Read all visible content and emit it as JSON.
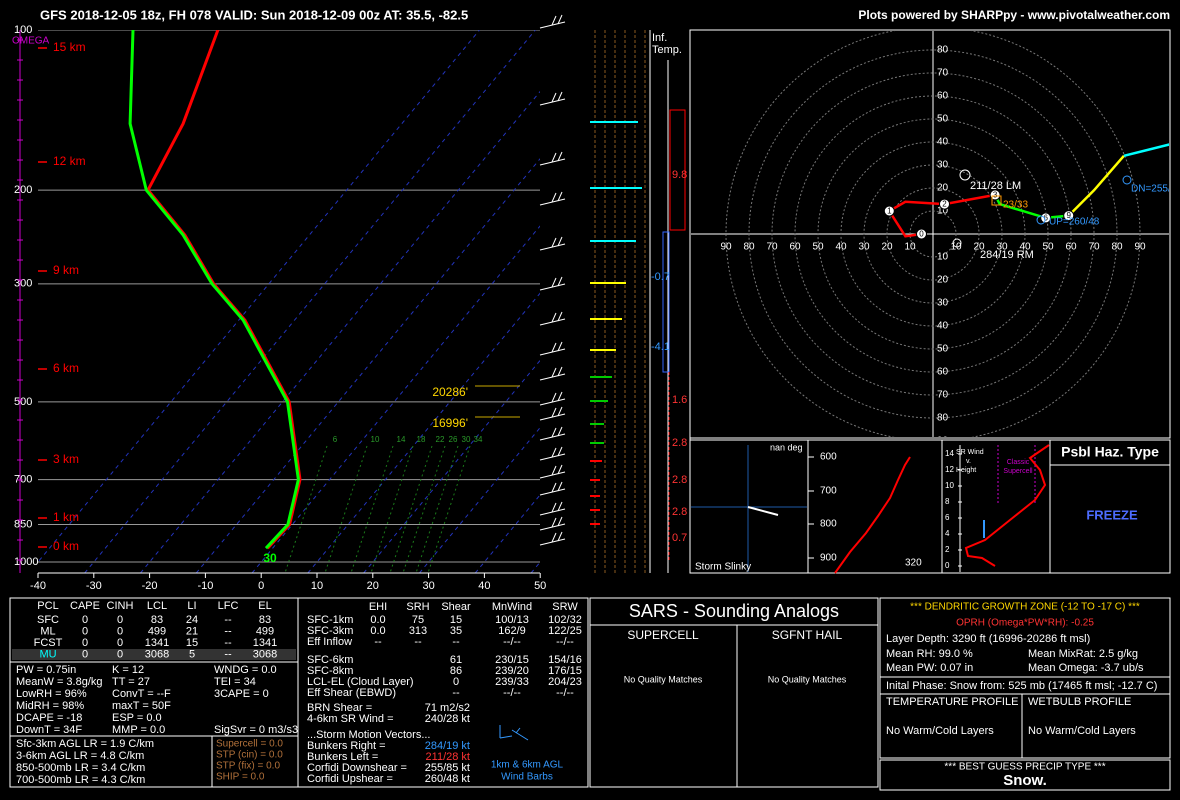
{
  "header": {
    "left": "GFS 2018-12-05 18z, FH 078    VALID: Sun 2018-12-09 00z    AT: 35.5, -82.5",
    "right": "Plots powered by SHARPpy - www.pivotalweather.com"
  },
  "skewt": {
    "omega_label": "OMEGA",
    "pressure_ticks": [
      100,
      200,
      300,
      500,
      700,
      850,
      1000
    ],
    "temp_ticks": [
      -40,
      -30,
      -20,
      -10,
      0,
      10,
      20,
      30,
      40,
      50
    ],
    "height_labels": [
      "15 km",
      "12 km",
      "9 km",
      "6 km",
      "3 km",
      "1 km",
      "0 km"
    ],
    "pressure": [
      942,
      850,
      700,
      500,
      351,
      300,
      243,
      200,
      150,
      100
    ],
    "temperature": [
      -0.9,
      -0.5,
      -5.3,
      -18.8,
      -38.9,
      -49.9,
      -62.3,
      -75.6,
      -79.2,
      -86.9
    ],
    "dewpoint": [
      -1.2,
      -0.8,
      -5.6,
      -19.1,
      -39.2,
      -50.2,
      -62.6,
      -75.9,
      -88.7,
      -102.1
    ],
    "dgz_labels": [
      "20286'",
      "16996'"
    ],
    "mixing_ratio_labels": [
      6,
      10,
      14,
      18,
      22,
      26,
      30,
      34
    ],
    "surface_label": 30
  },
  "inferred_temp": {
    "title": [
      "Inf.",
      "Temp."
    ],
    "values": [
      9.8,
      -0.7,
      -4.1,
      1.6,
      2.8,
      2.8,
      2.8,
      0.7
    ]
  },
  "hodograph": {
    "ring_labels": [
      10,
      20,
      30,
      40,
      50,
      60,
      70,
      80,
      90
    ],
    "traces": [
      {
        "color": "#ff0000",
        "u": [
          -5,
          -12,
          -19,
          -12,
          5,
          27
        ],
        "v": [
          0,
          -1,
          10,
          14,
          13,
          17
        ]
      },
      {
        "color": "#00ff00",
        "u": [
          27,
          29,
          49,
          59
        ],
        "v": [
          17,
          13,
          7,
          8
        ]
      },
      {
        "color": "#ffff00",
        "u": [
          59,
          70,
          83
        ],
        "v": [
          8,
          19,
          34
        ]
      },
      {
        "color": "#00ffff",
        "u": [
          83,
          103
        ],
        "v": [
          34,
          39
        ]
      }
    ],
    "km_markers": [
      {
        "km": 0,
        "u": -5,
        "v": 0
      },
      {
        "km": 1,
        "u": -19,
        "v": 10
      },
      {
        "km": 2,
        "u": 5,
        "v": 13
      },
      {
        "km": 3,
        "u": 27,
        "v": 17
      },
      {
        "km": 6,
        "u": 49,
        "v": 7
      },
      {
        "km": 9,
        "u": 59,
        "v": 8
      }
    ],
    "annotations": {
      "lm": "211/28 LM",
      "mid": "23/33",
      "rm": "284/19 RM",
      "dn": "DN=255/",
      "up": "UP=260/48"
    }
  },
  "slinky": {
    "title": "Storm Slinky",
    "angle": "nan deg"
  },
  "thetae": {
    "pressure_ticks": [
      600,
      700,
      800,
      900
    ],
    "label": 320
  },
  "sr_height": {
    "ticks": [
      14,
      12,
      10,
      8,
      6,
      4,
      2,
      0
    ],
    "title": [
      "SR Wind",
      "v.",
      "Height"
    ],
    "ref": [
      "Classic",
      "Supercell"
    ]
  },
  "hazard": {
    "title": "Psbl Haz. Type",
    "type": "FREEZE"
  },
  "thermo": {
    "headers": [
      "PCL",
      "CAPE",
      "CINH",
      "LCL",
      "LI",
      "LFC",
      "EL"
    ],
    "rows": [
      [
        "SFC",
        "0",
        "0",
        "83",
        "24",
        "--",
        "83"
      ],
      [
        "ML",
        "0",
        "0",
        "499",
        "21",
        "--",
        "499"
      ],
      [
        "FCST",
        "0",
        "0",
        "1341",
        "15",
        "--",
        "1341"
      ],
      [
        "MU",
        "0",
        "0",
        "3068",
        "5",
        "--",
        "3068"
      ]
    ],
    "indices": [
      [
        "PW = 0.75in",
        "MeanW = 3.8g/kg",
        "LowRH = 96%",
        "MidRH = 98%",
        "DCAPE = -18",
        "DownT = 34F"
      ],
      [
        "K = 12",
        "TT = 27",
        "ConvT = --F",
        "maxT = 50F",
        "ESP = 0.0",
        "MMP = 0.0"
      ],
      [
        "WNDG = 0.0",
        "TEI = 34",
        "3CAPE = 0",
        null,
        null,
        "SigSvr = 0 m3/s3"
      ]
    ],
    "lapse_rates": [
      "Sfc-3km AGL LR = 1.9 C/km",
      "3-6km AGL LR = 4.8 C/km",
      "850-500mb LR = 3.4 C/km",
      "700-500mb LR = 4.3 C/km"
    ],
    "params": [
      "Supercell = 0.0",
      "STP (cin) = 0.0",
      "STP (fix) = 0.0",
      "SHIP = 0.0"
    ]
  },
  "kinematic": {
    "headers": [
      "EHI",
      "SRH",
      "Shear",
      "MnWind",
      "SRW"
    ],
    "rows": [
      [
        "SFC-1km",
        "0.0",
        "75",
        "15",
        "100/13",
        "102/32"
      ],
      [
        "SFC-3km",
        "0.0",
        "313",
        "35",
        "162/9",
        "122/25"
      ],
      [
        "Eff Inflow",
        "--",
        "--",
        "--",
        "--/--",
        "--/--"
      ]
    ],
    "rows2": [
      [
        "SFC-6km",
        null,
        null,
        "61",
        "230/15",
        "154/16"
      ],
      [
        "SFC-8km",
        null,
        null,
        "86",
        "239/20",
        "176/15"
      ],
      [
        "LCL-EL (Cloud Layer)",
        null,
        null,
        "0",
        "239/33",
        "204/23"
      ],
      [
        "Eff Shear (EBWD)",
        null,
        null,
        "--",
        "--/--",
        "--/--"
      ]
    ],
    "pairs": [
      [
        "BRN Shear =",
        "71 m2/s2"
      ],
      [
        "4-6km SR Wind =",
        "240/28 kt"
      ]
    ],
    "motion_title": "...Storm Motion Vectors...",
    "motion": [
      [
        "Bunkers Right =",
        "284/19 kt"
      ],
      [
        "Bunkers Left =",
        "211/28 kt"
      ],
      [
        "Corfidi Downshear =",
        "255/85 kt"
      ],
      [
        "Corfidi Upshear =",
        "260/48 kt"
      ]
    ],
    "barb_caption": [
      "1km & 6km AGL",
      "Wind Barbs"
    ]
  },
  "sars": {
    "title": "SARS - Sounding Analogs",
    "supercell": "SUPERCELL",
    "hail": "SGFNT HAIL",
    "supercell_result": "No Quality Matches",
    "hail_result": "No Quality Matches"
  },
  "dgz": {
    "title": "*** DENDRITIC GROWTH ZONE (-12 TO -17 C) ***",
    "oprh": "OPRH (Omega*PW*RH): -0.25",
    "depth": "Layer Depth: 3290 ft (16996-20286 ft msl)",
    "rh": "Mean RH: 99.0 %",
    "mixrat": "Mean MixRat: 2.5 g/kg",
    "pw": "Mean PW: 0.07 in",
    "omega": "Mean Omega: -3.7 ub/s",
    "phase": "Inital Phase: Snow from: 525 mb (17465 ft msl; -12.7 C)",
    "temp_profile": "TEMPERATURE PROFILE",
    "wetbulb_profile": "WETBULB PROFILE",
    "temp_result": "No Warm/Cold Layers",
    "wetbulb_result": "No Warm/Cold Layers",
    "precip_title": "*** BEST GUESS PRECIP TYPE ***",
    "precip": "Snow."
  }
}
